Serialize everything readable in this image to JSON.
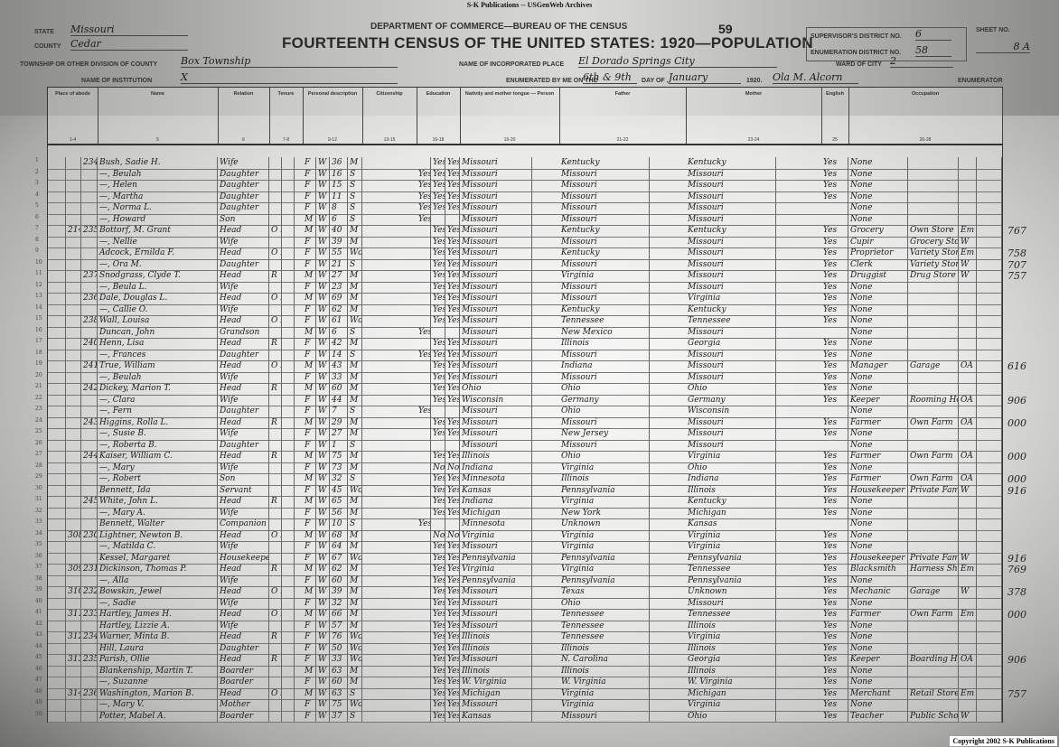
{
  "source_banner": "S-K Publications -- USGenWeb Archives",
  "header": {
    "form_no": "59",
    "department": "DEPARTMENT OF COMMERCE—BUREAU OF THE CENSUS",
    "title": "FOURTEENTH CENSUS OF THE UNITED STATES: 1920—POPULATION",
    "state_label": "State",
    "state": "Missouri",
    "county_label": "County",
    "county": "Cedar",
    "township_label": "Township or other division of county",
    "township": "Box Township",
    "institution_label": "Name of institution",
    "institution": "X",
    "place_label": "Name of incorporated place",
    "place": "El Dorado Springs City",
    "enumerated_label": "Enumerated by me on the",
    "enumerated_day": "6th & 9th",
    "day_of_label": "day of",
    "month": "January",
    "year": "1920.",
    "enumerator": "Ola M. Alcorn",
    "enumerator_label": "Enumerator",
    "supervisor_label": "Supervisor's District No.",
    "supervisor_district": "6",
    "enumeration_label": "Enumeration District No.",
    "enumeration_district": "58",
    "ward_label": "Ward of city",
    "ward": "2",
    "sheet_label": "Sheet No.",
    "sheet": "8 A"
  },
  "columns": [
    {
      "label": "Place of abode",
      "num": "1-4"
    },
    {
      "label": "Name",
      "num": "5"
    },
    {
      "label": "Relation",
      "num": "6"
    },
    {
      "label": "Tenure",
      "num": "7-8"
    },
    {
      "label": "Personal description",
      "num": "9-12"
    },
    {
      "label": "Citizenship",
      "num": "13-15"
    },
    {
      "label": "Education",
      "num": "16-18"
    },
    {
      "label": "Nativity and mother tongue — Person",
      "num": "19-20"
    },
    {
      "label": "Father",
      "num": "21-22"
    },
    {
      "label": "Mother",
      "num": "23-24"
    },
    {
      "label": "English",
      "num": "25"
    },
    {
      "label": "Occupation",
      "num": "26-28"
    }
  ],
  "rows": [
    [
      "",
      "234",
      "Bush, Sadie H.",
      "Wife",
      "",
      "F",
      "W",
      "36",
      "M",
      "",
      "Yes",
      "Yes",
      "Missouri",
      "Kentucky",
      "Kentucky",
      "Yes",
      "None",
      "",
      "",
      ""
    ],
    [
      "",
      "",
      "—, Beulah",
      "Daughter",
      "",
      "F",
      "W",
      "16",
      "S",
      "Yes",
      "Yes",
      "Yes",
      "Missouri",
      "Missouri",
      "Missouri",
      "Yes",
      "None",
      "",
      "",
      ""
    ],
    [
      "",
      "",
      "—, Helen",
      "Daughter",
      "",
      "F",
      "W",
      "15",
      "S",
      "Yes",
      "Yes",
      "Yes",
      "Missouri",
      "Missouri",
      "Missouri",
      "Yes",
      "None",
      "",
      "",
      ""
    ],
    [
      "",
      "",
      "—, Martha",
      "Daughter",
      "",
      "F",
      "W",
      "11",
      "S",
      "Yes",
      "Yes",
      "Yes",
      "Missouri",
      "Missouri",
      "Missouri",
      "Yes",
      "None",
      "",
      "",
      ""
    ],
    [
      "",
      "",
      "—, Norma L.",
      "Daughter",
      "",
      "F",
      "W",
      "8",
      "S",
      "Yes",
      "Yes",
      "Yes",
      "Missouri",
      "Missouri",
      "Missouri",
      "",
      "None",
      "",
      "",
      ""
    ],
    [
      "",
      "",
      "—, Howard",
      "Son",
      "",
      "M",
      "W",
      "6",
      "S",
      "Yes",
      "",
      "",
      "Missouri",
      "Missouri",
      "Missouri",
      "",
      "None",
      "",
      "",
      ""
    ],
    [
      "214",
      "235",
      "Bottorf, M. Grant",
      "Head",
      "O F",
      "M",
      "W",
      "40",
      "M",
      "",
      "Yes",
      "Yes",
      "Missouri",
      "Kentucky",
      "Kentucky",
      "Yes",
      "Grocery",
      "Own Store",
      "Em",
      "767"
    ],
    [
      "",
      "",
      "—, Nellie",
      "Wife",
      "",
      "F",
      "W",
      "39",
      "M",
      "",
      "Yes",
      "Yes",
      "Missouri",
      "Missouri",
      "Missouri",
      "Yes",
      "Cupir",
      "Grocery Store",
      "W",
      ""
    ],
    [
      "",
      "",
      "Adcock, Ernilda F.",
      "Head",
      "O F",
      "F",
      "W",
      "55",
      "Wd",
      "",
      "Yes",
      "Yes",
      "Missouri",
      "Kentucky",
      "Missouri",
      "Yes",
      "Proprietor",
      "Variety Store",
      "Em",
      "758"
    ],
    [
      "",
      "",
      "—, Ora M.",
      "Daughter",
      "",
      "F",
      "W",
      "21",
      "S",
      "",
      "Yes",
      "Yes",
      "Missouri",
      "Missouri",
      "Missouri",
      "Yes",
      "Clerk",
      "Variety Store",
      "W",
      "707"
    ],
    [
      "",
      "237",
      "Snodgrass, Clyde T.",
      "Head",
      "R",
      "M",
      "W",
      "27",
      "M",
      "",
      "Yes",
      "Yes",
      "Missouri",
      "Virginia",
      "Missouri",
      "Yes",
      "Druggist",
      "Drug Store",
      "W",
      "757"
    ],
    [
      "",
      "",
      "—, Beula L.",
      "Wife",
      "",
      "F",
      "W",
      "23",
      "M",
      "",
      "Yes",
      "Yes",
      "Missouri",
      "Missouri",
      "Missouri",
      "Yes",
      "None",
      "",
      "",
      ""
    ],
    [
      "",
      "236",
      "Dale, Douglas L.",
      "Head",
      "O F",
      "M",
      "W",
      "69",
      "M",
      "",
      "Yes",
      "Yes",
      "Missouri",
      "Missouri",
      "Virginia",
      "Yes",
      "None",
      "",
      "",
      ""
    ],
    [
      "",
      "",
      "—, Callie O.",
      "Wife",
      "",
      "F",
      "W",
      "62",
      "M",
      "",
      "Yes",
      "Yes",
      "Missouri",
      "Kentucky",
      "Kentucky",
      "Yes",
      "None",
      "",
      "",
      ""
    ],
    [
      "",
      "238",
      "Wall, Louisa",
      "Head",
      "O F",
      "F",
      "W",
      "61",
      "Wd",
      "",
      "Yes",
      "Yes",
      "Missouri",
      "Tennessee",
      "Tennessee",
      "Yes",
      "None",
      "",
      "",
      ""
    ],
    [
      "",
      "",
      "Duncan, John",
      "Grandson",
      "",
      "M",
      "W",
      "6",
      "S",
      "Yes",
      "",
      "",
      "Missouri",
      "New Mexico",
      "Missouri",
      "",
      "None",
      "",
      "",
      ""
    ],
    [
      "",
      "240",
      "Henn, Lisa",
      "Head",
      "R",
      "F",
      "W",
      "42",
      "M",
      "",
      "Yes",
      "Yes",
      "Missouri",
      "Illinois",
      "Georgia",
      "Yes",
      "None",
      "",
      "",
      ""
    ],
    [
      "",
      "",
      "—, Frances",
      "Daughter",
      "",
      "F",
      "W",
      "14",
      "S",
      "Yes",
      "Yes",
      "Yes",
      "Missouri",
      "Missouri",
      "Missouri",
      "Yes",
      "None",
      "",
      "",
      ""
    ],
    [
      "",
      "241",
      "True, William",
      "Head",
      "O F",
      "M",
      "W",
      "43",
      "M",
      "",
      "Yes",
      "Yes",
      "Missouri",
      "Indiana",
      "Missouri",
      "Yes",
      "Manager",
      "Garage",
      "OA",
      "616"
    ],
    [
      "",
      "",
      "—, Beulah",
      "Wife",
      "",
      "F",
      "W",
      "33",
      "M",
      "",
      "Yes",
      "Yes",
      "Missouri",
      "Missouri",
      "Missouri",
      "Yes",
      "None",
      "",
      "",
      ""
    ],
    [
      "",
      "242",
      "Dickey, Marion T.",
      "Head",
      "R",
      "M",
      "W",
      "60",
      "M",
      "",
      "Yes",
      "Yes",
      "Ohio",
      "Ohio",
      "Ohio",
      "Yes",
      "None",
      "",
      "",
      ""
    ],
    [
      "",
      "",
      "—, Clara",
      "Wife",
      "",
      "F",
      "W",
      "44",
      "M",
      "",
      "Yes",
      "Yes",
      "Wisconsin",
      "Germany",
      "Germany",
      "Yes",
      "Keeper",
      "Rooming House",
      "OA",
      "906"
    ],
    [
      "",
      "",
      "—, Fern",
      "Daughter",
      "",
      "F",
      "W",
      "7",
      "S",
      "Yes",
      "",
      "",
      "Missouri",
      "Ohio",
      "Wisconsin",
      "",
      "None",
      "",
      "",
      ""
    ],
    [
      "",
      "243",
      "Higgins, Rolla L.",
      "Head",
      "R",
      "M",
      "W",
      "29",
      "M",
      "",
      "Yes",
      "Yes",
      "Missouri",
      "Missouri",
      "Missouri",
      "Yes",
      "Farmer",
      "Own Farm",
      "OA",
      "000"
    ],
    [
      "",
      "",
      "—, Susie B.",
      "Wife",
      "",
      "F",
      "W",
      "27",
      "M",
      "",
      "Yes",
      "Yes",
      "Missouri",
      "New Jersey",
      "Missouri",
      "Yes",
      "None",
      "",
      "",
      ""
    ],
    [
      "",
      "",
      "—, Roberta B.",
      "Daughter",
      "",
      "F",
      "W",
      "1",
      "S",
      "",
      "",
      "",
      "Missouri",
      "Missouri",
      "Missouri",
      "",
      "None",
      "",
      "",
      ""
    ],
    [
      "",
      "244",
      "Kaiser, William C.",
      "Head",
      "R",
      "M",
      "W",
      "75",
      "M",
      "",
      "Yes",
      "Yes",
      "Illinois",
      "Ohio",
      "Virginia",
      "Yes",
      "Farmer",
      "Own Farm",
      "OA",
      "000"
    ],
    [
      "",
      "",
      "—, Mary",
      "Wife",
      "",
      "F",
      "W",
      "73",
      "M",
      "",
      "No",
      "No",
      "Indiana",
      "Virginia",
      "Ohio",
      "Yes",
      "None",
      "",
      "",
      ""
    ],
    [
      "",
      "",
      "—, Robert",
      "Son",
      "",
      "M",
      "W",
      "32",
      "S",
      "",
      "Yes",
      "Yes",
      "Minnesota",
      "Illinois",
      "Indiana",
      "Yes",
      "Farmer",
      "Own Farm",
      "OA",
      "000"
    ],
    [
      "",
      "",
      "Bennett, Ida",
      "Servant",
      "",
      "F",
      "W",
      "45",
      "Wd",
      "",
      "Yes",
      "Yes",
      "Kansas",
      "Pennsylvania",
      "Illinois",
      "Yes",
      "Housekeeper",
      "Private Family",
      "W",
      "916"
    ],
    [
      "",
      "245",
      "White, John L.",
      "Head",
      "R",
      "M",
      "W",
      "65",
      "M",
      "",
      "Yes",
      "Yes",
      "Indiana",
      "Virginia",
      "Kentucky",
      "Yes",
      "None",
      "",
      "",
      ""
    ],
    [
      "",
      "",
      "—, Mary A.",
      "Wife",
      "",
      "F",
      "W",
      "56",
      "M",
      "",
      "Yes",
      "Yes",
      "Michigan",
      "New York",
      "Michigan",
      "Yes",
      "None",
      "",
      "",
      ""
    ],
    [
      "",
      "",
      "Bennett, Walter",
      "Companion",
      "",
      "F",
      "W",
      "10",
      "S",
      "Yes",
      "",
      "",
      "Minnesota",
      "Unknown",
      "Kansas",
      "",
      "None",
      "",
      "",
      ""
    ],
    [
      "308",
      "230",
      "Lightner, Newton B.",
      "Head",
      "O F",
      "M",
      "W",
      "68",
      "M",
      "",
      "No",
      "No",
      "Virginia",
      "Virginia",
      "Virginia",
      "Yes",
      "None",
      "",
      "",
      ""
    ],
    [
      "",
      "",
      "—, Matilda C.",
      "Wife",
      "",
      "F",
      "W",
      "64",
      "M",
      "",
      "Yes",
      "Yes",
      "Missouri",
      "Virginia",
      "Virginia",
      "Yes",
      "None",
      "",
      "",
      ""
    ],
    [
      "",
      "",
      "Kessel, Margaret",
      "Housekeeper",
      "",
      "F",
      "W",
      "67",
      "Wd",
      "",
      "Yes",
      "Yes",
      "Pennsylvania",
      "Pennsylvania",
      "Pennsylvania",
      "Yes",
      "Housekeeper",
      "Private Family",
      "W",
      "916"
    ],
    [
      "309",
      "231",
      "Dickinson, Thomas P.",
      "Head",
      "R",
      "M",
      "W",
      "62",
      "M",
      "",
      "Yes",
      "Yes",
      "Virginia",
      "Virginia",
      "Tennessee",
      "Yes",
      "Blacksmith",
      "Harness Shop",
      "Em",
      "769"
    ],
    [
      "",
      "",
      "—, Alla",
      "Wife",
      "",
      "F",
      "W",
      "60",
      "M",
      "",
      "Yes",
      "Yes",
      "Pennsylvania",
      "Pennsylvania",
      "Pennsylvania",
      "Yes",
      "None",
      "",
      "",
      ""
    ],
    [
      "310",
      "232",
      "Bowskin, Jewel",
      "Head",
      "O M",
      "M",
      "W",
      "39",
      "M",
      "",
      "Yes",
      "Yes",
      "Missouri",
      "Texas",
      "Unknown",
      "Yes",
      "Mechanic",
      "Garage",
      "W",
      "378"
    ],
    [
      "",
      "",
      "—, Sadie",
      "Wife",
      "",
      "F",
      "W",
      "32",
      "M",
      "",
      "Yes",
      "Yes",
      "Missouri",
      "Ohio",
      "Missouri",
      "Yes",
      "None",
      "",
      "",
      ""
    ],
    [
      "311",
      "233",
      "Hartley, James H.",
      "Head",
      "O M",
      "M",
      "W",
      "66",
      "M",
      "",
      "Yes",
      "Yes",
      "Missouri",
      "Tennessee",
      "Tennessee",
      "Yes",
      "Farmer",
      "Own Farm",
      "Em",
      "000"
    ],
    [
      "",
      "",
      "Hartley, Lizzie A.",
      "Wife",
      "",
      "F",
      "W",
      "57",
      "M",
      "",
      "Yes",
      "Yes",
      "Missouri",
      "Tennessee",
      "Illinois",
      "Yes",
      "None",
      "",
      "",
      ""
    ],
    [
      "312",
      "234",
      "Warner, Minta B.",
      "Head",
      "R",
      "F",
      "W",
      "76",
      "Wd",
      "",
      "Yes",
      "Yes",
      "Illinois",
      "Tennessee",
      "Virginia",
      "Yes",
      "None",
      "",
      "",
      ""
    ],
    [
      "",
      "",
      "Hill, Laura",
      "Daughter",
      "",
      "F",
      "W",
      "50",
      "Wd",
      "",
      "Yes",
      "Yes",
      "Illinois",
      "Illinois",
      "Illinois",
      "Yes",
      "None",
      "",
      "",
      ""
    ],
    [
      "313",
      "235",
      "Parish, Ollie",
      "Head",
      "R",
      "F",
      "W",
      "33",
      "Wd",
      "",
      "Yes",
      "Yes",
      "Missouri",
      "N. Carolina",
      "Georgia",
      "Yes",
      "Keeper",
      "Boarding House",
      "OA",
      "906"
    ],
    [
      "",
      "",
      "Blankenship, Martin T.",
      "Boarder",
      "",
      "M",
      "W",
      "63",
      "M",
      "",
      "Yes",
      "Yes",
      "Illinois",
      "Illinois",
      "Illinois",
      "Yes",
      "None",
      "",
      "",
      ""
    ],
    [
      "",
      "",
      "—, Suzanne",
      "Boarder",
      "",
      "F",
      "W",
      "60",
      "M",
      "",
      "Yes",
      "Yes",
      "W. Virginia",
      "W. Virginia",
      "W. Virginia",
      "Yes",
      "None",
      "",
      "",
      ""
    ],
    [
      "314",
      "236",
      "Washington, Marion B.",
      "Head",
      "O F",
      "M",
      "W",
      "63",
      "S",
      "",
      "Yes",
      "Yes",
      "Michigan",
      "Virginia",
      "Michigan",
      "Yes",
      "Merchant",
      "Retail Store",
      "Em",
      "757"
    ],
    [
      "",
      "",
      "—, Mary V.",
      "Mother",
      "",
      "F",
      "W",
      "75",
      "Wd",
      "",
      "Yes",
      "Yes",
      "Missouri",
      "Virginia",
      "Virginia",
      "Yes",
      "None",
      "",
      "",
      ""
    ],
    [
      "",
      "",
      "Potter, Mabel A.",
      "Boarder",
      "",
      "F",
      "W",
      "37",
      "S",
      "",
      "Yes",
      "Yes",
      "Kansas",
      "Missouri",
      "Ohio",
      "Yes",
      "Teacher",
      "Public School",
      "W",
      ""
    ]
  ],
  "copyright": "Copyright 2002 S-K Publications"
}
